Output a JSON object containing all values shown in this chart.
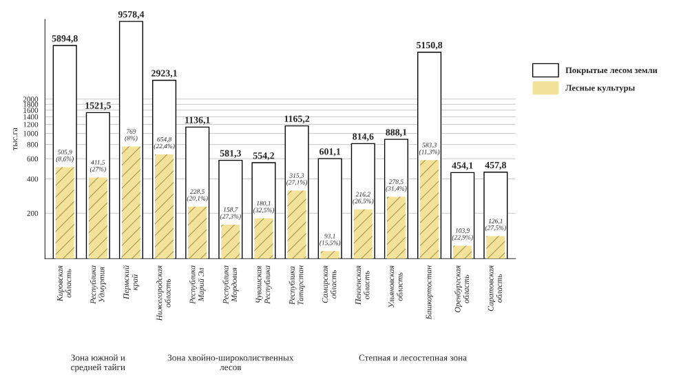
{
  "chart_data": {
    "type": "bar",
    "ylabel": "тыс.га",
    "categories": [
      "Кировская\nобласть",
      "Республика\nУдмуртия",
      "Пермский\nкрай",
      "Нижегородская\nобласть",
      "Республика\nМарий Эл",
      "Республика\nМордовия",
      "Чувашская\nРеспублика",
      "Республика\nТатарстан",
      "Самарская\nобласть",
      "Пензенская\nобласть",
      "Ульяновская\nобласть",
      "Башкортостан",
      "Оренбургская\nобласть",
      "Саратовская\nобласть"
    ],
    "series": [
      {
        "name": "Покрытые лесом земли",
        "color": "#ffffff",
        "values": [
          5894.8,
          1521.5,
          9578.4,
          2923.1,
          1136.1,
          581.3,
          554.2,
          1165.2,
          601.1,
          814.6,
          888.1,
          5150.8,
          454.1,
          457.8
        ],
        "value_labels": [
          "5894,8",
          "1521,5",
          "9578,4",
          "2923,1",
          "1136,1",
          "581,3",
          "554,2",
          "1165,2",
          "601,1",
          "814,6",
          "888,1",
          "5150,8",
          "454,1",
          "457,8"
        ]
      },
      {
        "name": "Лесные культуры",
        "color": "#f3e39a",
        "values": [
          505.9,
          411.5,
          769,
          654.8,
          228.5,
          158.7,
          180.1,
          315.3,
          93.1,
          216.2,
          278.5,
          583.3,
          103.9,
          126.1
        ],
        "value_labels": [
          "505,9\n(8,6%)",
          "411,5\n(27%)",
          "769\n(8%)",
          "654,8\n(22,4%)",
          "228,5\n(20,1%)",
          "158,7\n(27,3%)",
          "180,1\n(32,5%)",
          "315,3\n(27,1%)",
          "93,1\n(15,5%)",
          "216,2\n(26,5%)",
          "278,5\n(31,4%)",
          "583,3\n(11,3%)",
          "103,9\n(22,9%)",
          "126,1\n(27,5%)"
        ]
      }
    ],
    "log": true,
    "ylim": [
      80,
      10000
    ],
    "yticks": [
      200,
      400,
      600,
      800,
      1000,
      1200,
      1400,
      1600,
      1800,
      2000
    ],
    "grid": "y",
    "legend": "right",
    "annotations": [
      "Зона южной и\nсредней тайги",
      "Зона хвойно-широколиственных\nлесов",
      "Степная и лесостепная зона"
    ]
  }
}
